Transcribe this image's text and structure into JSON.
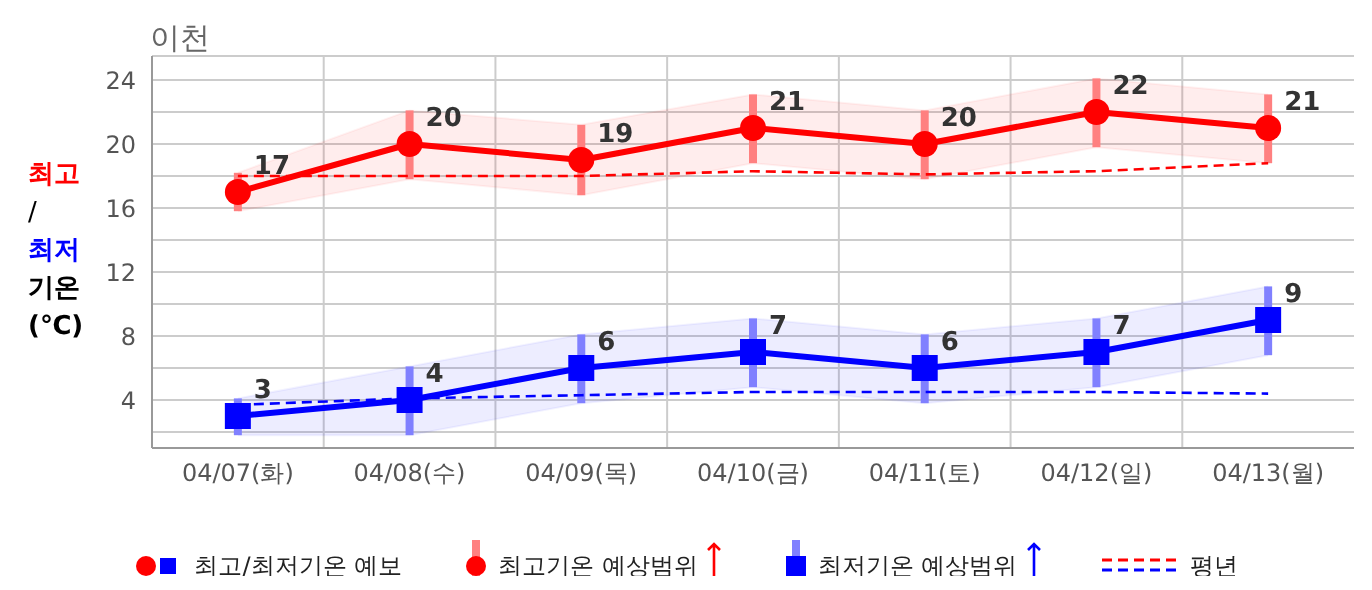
{
  "chart_data": {
    "type": "line",
    "title": "이천",
    "ylabel": "최고/최저 기온 (℃)",
    "categories": [
      "04/07(화)",
      "04/08(수)",
      "04/09(목)",
      "04/10(금)",
      "04/11(토)",
      "04/12(일)",
      "04/13(월)"
    ],
    "series": [
      {
        "name": "최고기온 예상범위",
        "color": "#ff0000",
        "marker": "circle",
        "line_style": "solid",
        "values": [
          17,
          20,
          19,
          21,
          20,
          22,
          21
        ],
        "value_labels": [
          "17",
          "20",
          "19",
          "21",
          "20",
          "22",
          "21"
        ],
        "lower": [
          15.8,
          17.8,
          16.8,
          18.8,
          17.8,
          19.8,
          18.8
        ],
        "upper": [
          18.2,
          22.1,
          21.2,
          23.1,
          22.1,
          24.1,
          23.1
        ]
      },
      {
        "name": "최저기온 예상범위",
        "color": "#0000ff",
        "marker": "square",
        "line_style": "solid",
        "values": [
          3,
          4,
          6,
          7,
          6,
          7,
          9
        ],
        "value_labels": [
          "3",
          "4",
          "6",
          "7",
          "6",
          "7",
          "9"
        ],
        "lower": [
          1.8,
          1.8,
          3.8,
          4.8,
          3.8,
          4.8,
          6.8
        ],
        "upper": [
          4.1,
          6.1,
          8.1,
          9.1,
          8.1,
          9.1,
          11.1
        ]
      },
      {
        "name": "평년",
        "color": "#ff0000",
        "marker": "none",
        "line_style": "dashed",
        "values": [
          18,
          18,
          18,
          18.3,
          18.1,
          18.3,
          18.8
        ]
      },
      {
        "color": "#0000ff",
        "marker": "none",
        "line_style": "dashed",
        "values": [
          3.7,
          4.1,
          4.3,
          4.5,
          4.5,
          4.5,
          4.4
        ]
      }
    ],
    "ylim": [
      1,
      25.5
    ],
    "yticks": [
      {
        "value": 2,
        "label": null
      },
      4,
      {
        "value": 6,
        "label": null
      },
      8,
      {
        "value": 10,
        "label": null
      },
      12,
      {
        "value": 14,
        "label": null
      },
      16,
      {
        "value": 18,
        "label": null
      },
      20,
      {
        "value": 22,
        "label": null
      },
      24
    ],
    "grid": true,
    "legend": "bottom",
    "annotations": [
      "최고/최저기온 예보"
    ]
  }
}
